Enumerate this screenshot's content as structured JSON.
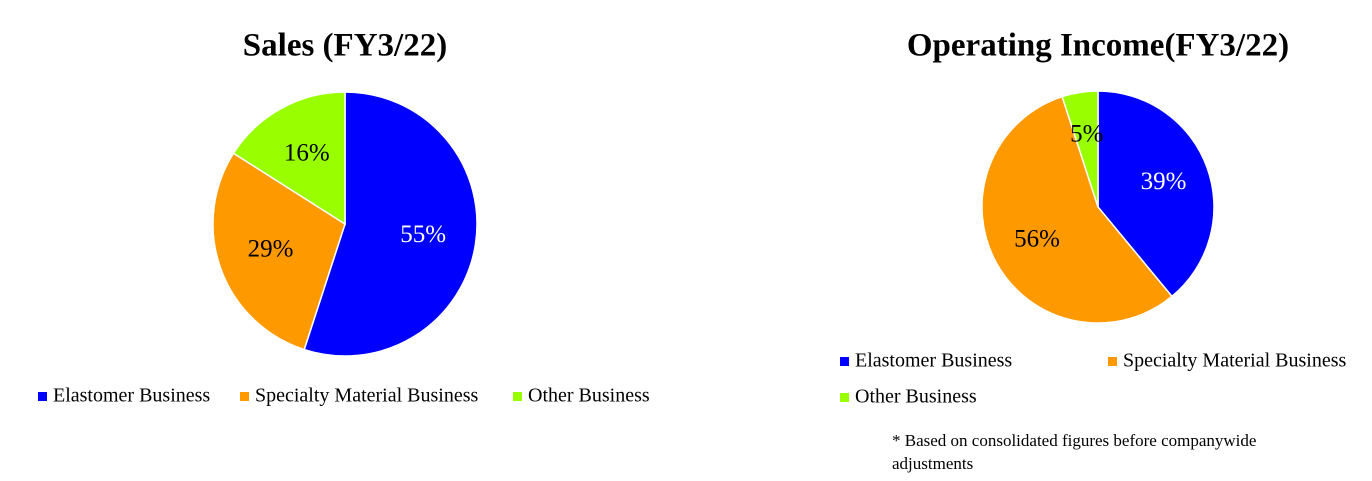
{
  "chart_data": [
    {
      "type": "pie",
      "title": "Sales (FY3/22)",
      "categories": [
        "Elastomer Business",
        "Specialty Material Business",
        "Other Business"
      ],
      "values": [
        55,
        29,
        16
      ],
      "value_labels": [
        "55%",
        "29%",
        "16%"
      ],
      "colors": [
        "#0000ff",
        "#ff9900",
        "#99ff00"
      ]
    },
    {
      "type": "pie",
      "title": "Operating Income(FY3/22)",
      "categories": [
        "Elastomer Business",
        "Specialty Material Business",
        "Other Business"
      ],
      "values": [
        39,
        56,
        5
      ],
      "value_labels": [
        "39%",
        "56%",
        "5%"
      ],
      "colors": [
        "#0000ff",
        "#ff9900",
        "#99ff00"
      ],
      "note": "* Based on consolidated figures before companywide adjustments"
    }
  ]
}
